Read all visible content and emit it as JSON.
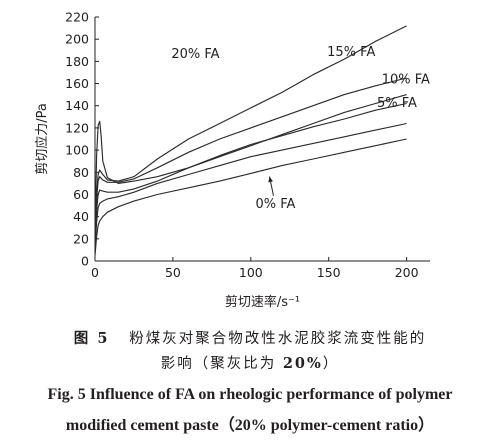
{
  "chart_data": {
    "type": "line",
    "xlabel": "剪切速率/s⁻¹",
    "ylabel": "剪切应力/Pa",
    "xlim": [
      0,
      215
    ],
    "ylim": [
      0,
      220
    ],
    "xticks": [
      0,
      50,
      100,
      150,
      200
    ],
    "yticks": [
      0,
      20,
      40,
      60,
      80,
      100,
      120,
      140,
      160,
      180,
      200,
      220
    ],
    "grid": false,
    "series": [
      {
        "name": "20% FA",
        "x": [
          0,
          1,
          2,
          3,
          5,
          8,
          15,
          25,
          40,
          60,
          80,
          100,
          120,
          140,
          160,
          180,
          200
        ],
        "y": [
          15,
          60,
          78,
          82,
          78,
          73,
          72,
          76,
          92,
          110,
          124,
          138,
          152,
          168,
          182,
          198,
          212
        ]
      },
      {
        "name": "15% FA",
        "x": [
          0,
          1,
          2,
          3,
          5,
          8,
          15,
          25,
          40,
          60,
          80,
          100,
          120,
          140,
          160,
          180,
          200
        ],
        "y": [
          12,
          55,
          72,
          76,
          73,
          71,
          71,
          74,
          84,
          98,
          110,
          120,
          130,
          140,
          150,
          158,
          165
        ]
      },
      {
        "name": "10% FA",
        "x": [
          0,
          1,
          2,
          3,
          4,
          5,
          8,
          15,
          25,
          40,
          60,
          80,
          100,
          120,
          140,
          160,
          180,
          200
        ],
        "y": [
          20,
          95,
          122,
          126,
          112,
          90,
          75,
          70,
          72,
          76,
          84,
          94,
          104,
          114,
          124,
          134,
          142,
          150
        ]
      },
      {
        "name": "",
        "x": [
          0,
          1,
          2,
          3,
          5,
          8,
          15,
          25,
          40,
          60,
          80,
          100,
          120,
          140,
          160,
          180,
          200
        ],
        "y": [
          10,
          45,
          60,
          64,
          63,
          62,
          62,
          65,
          72,
          84,
          95,
          105,
          113,
          121,
          128,
          136,
          142
        ]
      },
      {
        "name": "5% FA",
        "x": [
          0,
          1,
          2,
          3,
          5,
          8,
          15,
          25,
          40,
          60,
          80,
          100,
          120,
          140,
          160,
          180,
          200
        ],
        "y": [
          8,
          35,
          48,
          52,
          54,
          56,
          58,
          62,
          70,
          78,
          86,
          94,
          100,
          106,
          112,
          118,
          124
        ]
      },
      {
        "name": "0% FA",
        "x": [
          0,
          1,
          2,
          3,
          5,
          8,
          15,
          25,
          40,
          60,
          80,
          100,
          120,
          140,
          160,
          180,
          200
        ],
        "y": [
          5,
          22,
          32,
          36,
          40,
          44,
          49,
          54,
          60,
          66,
          72,
          79,
          86,
          92,
          98,
          104,
          110
        ]
      }
    ],
    "annotations": [
      {
        "text": "20% FA",
        "x": 49,
        "y": 183,
        "series": "20% FA"
      },
      {
        "text": "15% FA",
        "x": 149,
        "y": 185,
        "series": "15% FA"
      },
      {
        "text": "10% FA",
        "x": 184,
        "y": 160,
        "series": "10% FA"
      },
      {
        "text": "5% FA",
        "x": 181,
        "y": 139,
        "series": "5% FA"
      },
      {
        "text": "0% FA",
        "x": 103,
        "y": 48,
        "series": "0% FA",
        "arrow_to_x": 112,
        "arrow_to_y": 78
      }
    ]
  },
  "caption": {
    "cn_line1_label": "图 5",
    "cn_line1_text": "粉煤灰对聚合物改性水泥胶浆流变性能的",
    "cn_line2_pre": "影响（聚灰比为 ",
    "cn_line2_bold": "20%",
    "cn_line2_post": "）",
    "en_line1": "Fig. 5   Influence of FA on rheologic performance of polymer",
    "en_line2": "modified cement paste（20% polymer-cement ratio）"
  }
}
